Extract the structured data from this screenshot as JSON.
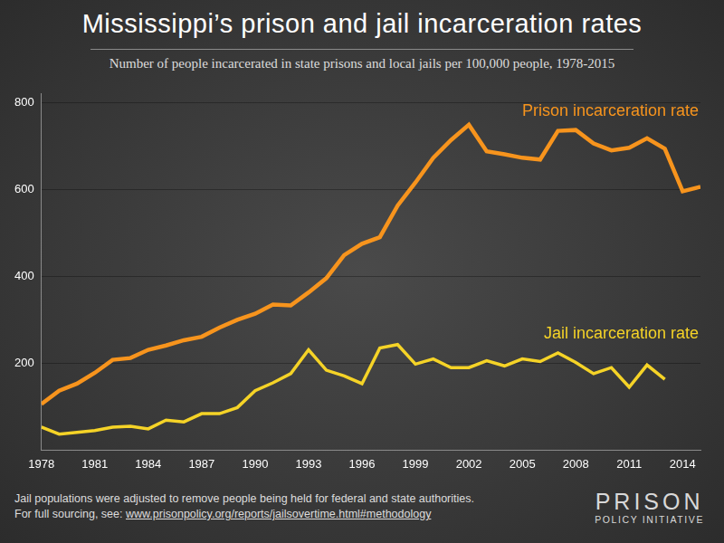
{
  "chart_data": {
    "type": "line",
    "title": "Mississippi’s prison and jail incarceration rates",
    "subtitle": "Number of people incarcerated in state prisons and local jails per 100,000 people, 1978-2015",
    "x": [
      1978,
      1979,
      1980,
      1981,
      1982,
      1983,
      1984,
      1985,
      1986,
      1987,
      1988,
      1989,
      1990,
      1991,
      1992,
      1993,
      1994,
      1995,
      1996,
      1997,
      1998,
      1999,
      2000,
      2001,
      2002,
      2003,
      2004,
      2005,
      2006,
      2007,
      2008,
      2009,
      2010,
      2011,
      2012,
      2013,
      2014,
      2015
    ],
    "series": [
      {
        "name": "Prison incarceration rate",
        "color": "#f7941d",
        "values": [
          106,
          137,
          153,
          178,
          208,
          212,
          231,
          241,
          253,
          261,
          282,
          300,
          314,
          335,
          333,
          363,
          396,
          449,
          475,
          490,
          563,
          616,
          673,
          714,
          749,
          688,
          681,
          673,
          669,
          735,
          737,
          706,
          690,
          696,
          718,
          694,
          596,
          606
        ]
      },
      {
        "name": "Jail incarceration rate",
        "color": "#f5d327",
        "values": [
          53,
          37,
          41,
          45,
          53,
          55,
          49,
          69,
          65,
          84,
          84,
          98,
          137,
          155,
          176,
          231,
          184,
          171,
          153,
          235,
          243,
          198,
          210,
          190,
          190,
          206,
          194,
          210,
          204,
          224,
          202,
          176,
          190,
          145,
          196,
          163,
          null,
          null
        ]
      }
    ],
    "xlim": [
      1978,
      2015
    ],
    "xticks": [
      1978,
      1981,
      1984,
      1987,
      1990,
      1993,
      1996,
      1999,
      2002,
      2005,
      2008,
      2011,
      2014
    ],
    "ylim": [
      0,
      820
    ],
    "yticks": [
      200,
      400,
      600,
      800
    ],
    "grid": true,
    "footnotes": [
      "Jail populations were adjusted to remove people being held for federal and state authorities.",
      "For full sourcing, see: ",
      "www.prisonpolicy.org/reports/jailsovertime.html#methodology"
    ],
    "credit": [
      "PRISON",
      "POLICY INITIATIVE"
    ]
  }
}
